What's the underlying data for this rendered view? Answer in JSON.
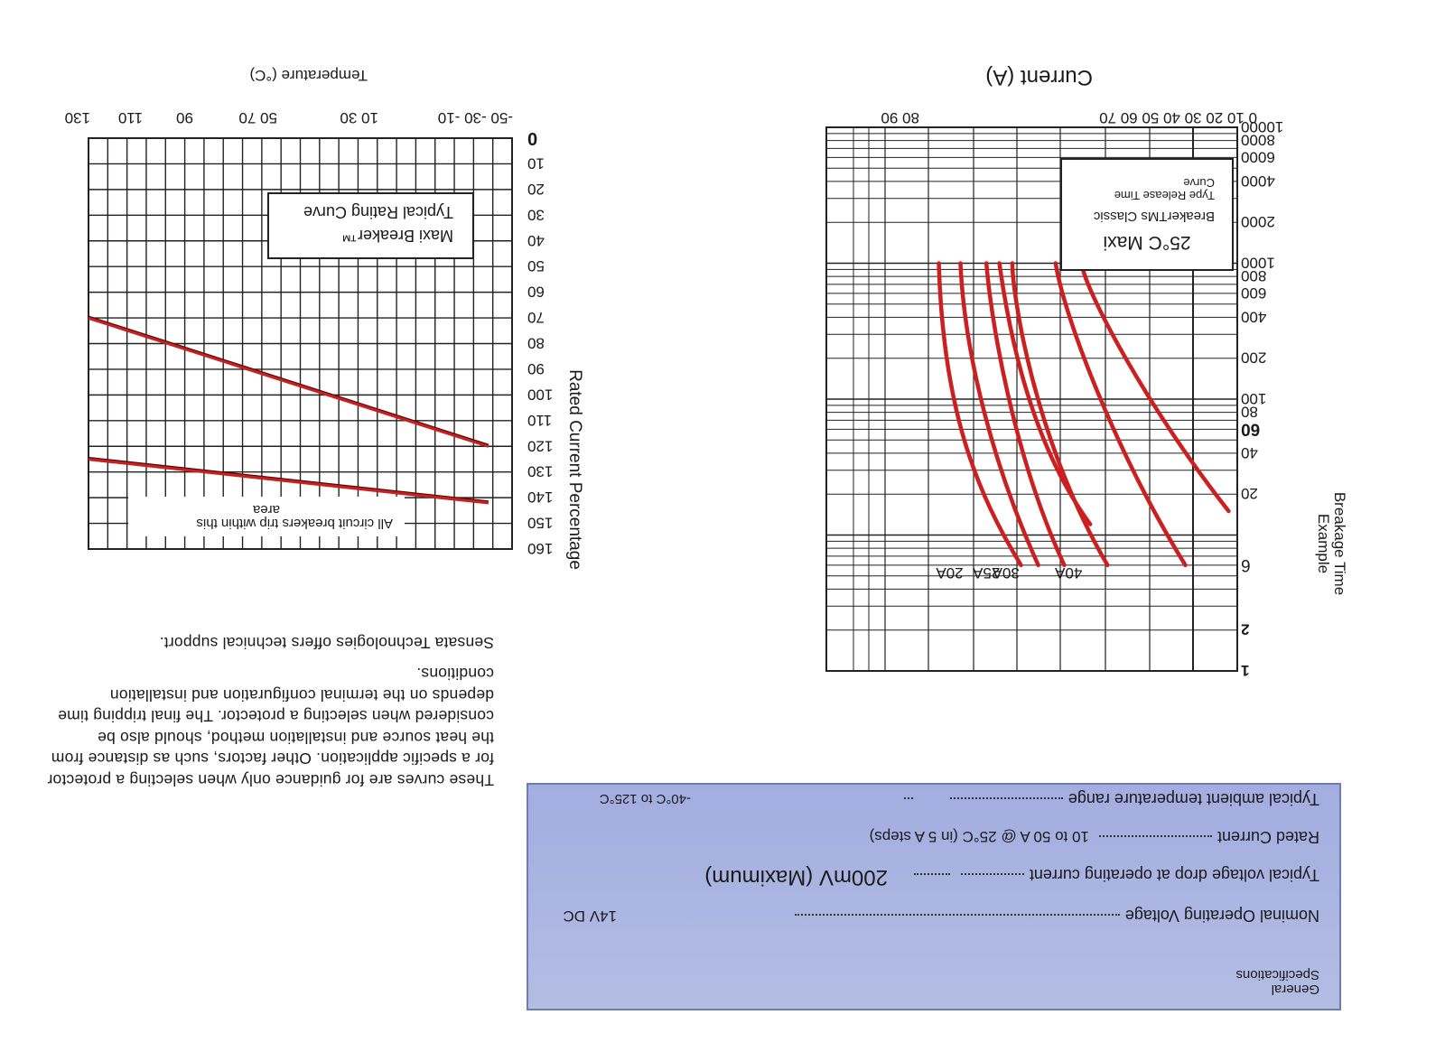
{
  "specifications": {
    "heading": "General Specifications",
    "rows": [
      {
        "label": "Nominal Operating Voltage",
        "value": "14V DC"
      },
      {
        "label": "Typical voltage drop at operating current",
        "value": "200mV (Maximum)"
      },
      {
        "label": "Rated Current",
        "value": "10 to 50 A @ 25°C (in 5 A steps)"
      },
      {
        "label": "Typical ambient temperature range",
        "value": "-40°C to 125°C"
      }
    ],
    "background_color": "#a9b2e0"
  },
  "notes": {
    "paragraph_1": "These curves are for guidance only when selecting a protector for a specific application. Other factors, such as distance from the heat source and installation method, should also be considered when selecting a protector. The final tripping time depends on the terminal configuration and installation conditions.",
    "paragraph_2": "Sensata Technologies offers technical support."
  },
  "chart_data": [
    {
      "type": "line",
      "title": "25°C Maxi BreakerTMs Classic Type Release Time Curve",
      "xlabel": "Current (A)",
      "ylabel": "Breakage Time Example",
      "x_tick_labels": [
        "0 10 20 30 40 50 60 70",
        "80 90"
      ],
      "y_tick_labels": [
        "1",
        "2",
        "6",
        "20",
        "40",
        "60",
        "80",
        "100",
        "200",
        "400",
        "600",
        "800",
        "1000",
        "2000",
        "4000",
        "6000",
        "8000",
        "10000"
      ],
      "y_scale": "log",
      "series_color": "#cc1f1f",
      "series": [
        {
          "name": "20A",
          "points": [
            [
              50,
              6
            ],
            [
              60,
              20
            ],
            [
              68,
              80
            ],
            [
              69,
              1000
            ]
          ]
        },
        {
          "name": "20A",
          "points": [
            [
              46,
              6
            ],
            [
              56,
              30
            ],
            [
              63,
              200
            ],
            [
              64,
              1000
            ]
          ]
        },
        {
          "name": "25A",
          "points": [
            [
              40,
              6
            ],
            [
              52,
              40
            ],
            [
              57,
              400
            ],
            [
              58,
              1000
            ]
          ]
        },
        {
          "name": "30A",
          "points": [
            [
              34,
              12
            ],
            [
              50,
              60
            ],
            [
              54,
              600
            ],
            [
              55,
              1000
            ]
          ]
        },
        {
          "name": "30A",
          "points": [
            [
              30,
              6
            ],
            [
              47,
              50
            ],
            [
              52,
              600
            ],
            [
              52,
              1000
            ]
          ]
        },
        {
          "name": "40A",
          "points": [
            [
              12,
              6
            ],
            [
              28,
              40
            ],
            [
              40,
              400
            ],
            [
              42,
              1000
            ]
          ]
        },
        {
          "name": "40A",
          "points": [
            [
              2,
              15
            ],
            [
              20,
              80
            ],
            [
              35,
              600
            ],
            [
              36,
              1000
            ]
          ]
        }
      ]
    },
    {
      "type": "line",
      "title": "Maxi Breaker™ Typical Rating Curve",
      "xlabel": "Temperature (°C)",
      "ylabel": "Rated Current Percentage",
      "x_tick_labels": [
        "-50 -30 -10",
        "10 30",
        "50 70",
        "90",
        "110",
        "130"
      ],
      "y_tick_labels": [
        "0",
        "10",
        "20",
        "30",
        "40",
        "50",
        "60",
        "70",
        "80",
        "90",
        "100",
        "110",
        "120",
        "130",
        "140",
        "150",
        "160"
      ],
      "xlim": [
        -50,
        130
      ],
      "ylim": [
        0,
        160
      ],
      "annotation": "All circuit breakers trip within this area",
      "series_color": "#cc1f1f",
      "series": [
        {
          "points": [
            [
              -40,
              120
            ],
            [
              130,
              70
            ]
          ]
        },
        {
          "points": [
            [
              -40,
              142
            ],
            [
              130,
              125
            ]
          ]
        }
      ]
    }
  ]
}
